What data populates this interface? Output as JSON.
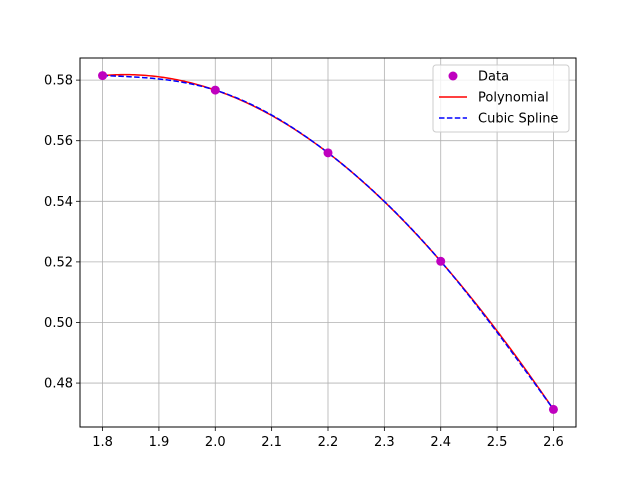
{
  "chart_data": {
    "type": "line",
    "title": "",
    "xlabel": "",
    "ylabel": "",
    "xlim": [
      1.76,
      2.64
    ],
    "ylim": [
      0.4655,
      0.5873
    ],
    "xticks": [
      1.8,
      1.9,
      2.0,
      2.1,
      2.2,
      2.3,
      2.4,
      2.5,
      2.6
    ],
    "xtick_labels": [
      "1.8",
      "1.9",
      "2.0",
      "2.1",
      "2.2",
      "2.3",
      "2.4",
      "2.5",
      "2.6"
    ],
    "yticks": [
      0.48,
      0.5,
      0.52,
      0.54,
      0.56,
      0.58
    ],
    "ytick_labels": [
      "0.48",
      "0.50",
      "0.52",
      "0.54",
      "0.56",
      "0.58"
    ],
    "grid": true,
    "legend_position": "top-right",
    "series": [
      {
        "name": "Data",
        "kind": "scatter",
        "color": "#bf00bf",
        "x": [
          1.8,
          2.0,
          2.2,
          2.4,
          2.6
        ],
        "y": [
          0.5815,
          0.5767,
          0.556,
          0.5202,
          0.4713
        ]
      },
      {
        "name": "Polynomial",
        "kind": "line",
        "color": "#ff0000",
        "style": "solid",
        "x": [
          1.8,
          2.0,
          2.2,
          2.4,
          2.6
        ],
        "y": [
          0.5815,
          0.5767,
          0.556,
          0.5202,
          0.4713
        ]
      },
      {
        "name": "Cubic Spline",
        "kind": "line",
        "color": "#0000ff",
        "style": "dashed",
        "x": [
          1.8,
          2.0,
          2.2,
          2.4,
          2.6
        ],
        "y": [
          0.5815,
          0.5767,
          0.556,
          0.5202,
          0.4713
        ]
      }
    ]
  }
}
